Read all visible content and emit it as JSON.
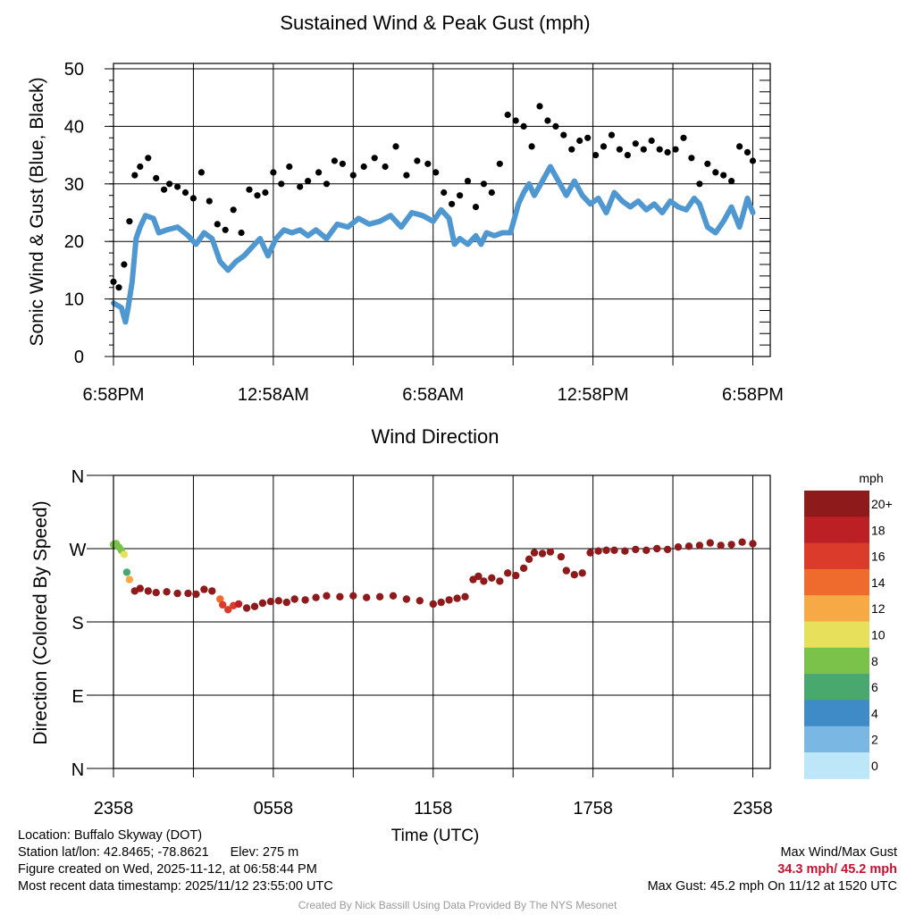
{
  "chart_data": [
    {
      "type": "line",
      "title": "Sustained Wind & Peak Gust (mph)",
      "ylabel": "Sonic Wind & Gust (Blue, Black)",
      "xlabel": "",
      "ylim": [
        0,
        50
      ],
      "yticks": [
        "0",
        "10",
        "20",
        "30",
        "40",
        "50"
      ],
      "xlim_hours": [
        0,
        24
      ],
      "xtick_labels": [
        "6:58PM",
        "12:58AM",
        "6:58AM",
        "12:58PM",
        "6:58PM"
      ],
      "grid": true,
      "series": [
        {
          "name": "Sonic Wind (Blue)",
          "color": "#4f97d0",
          "x_hours": [
            0,
            0.3,
            0.45,
            0.55,
            0.7,
            0.85,
            1.0,
            1.2,
            1.5,
            1.7,
            2.0,
            2.4,
            2.8,
            3.1,
            3.4,
            3.7,
            4.0,
            4.3,
            4.6,
            4.9,
            5.2,
            5.5,
            5.8,
            6.1,
            6.4,
            6.7,
            7.0,
            7.3,
            7.6,
            8.0,
            8.4,
            8.8,
            9.2,
            9.6,
            10.0,
            10.4,
            10.8,
            11.2,
            11.6,
            12.0,
            12.3,
            12.6,
            12.8,
            13.0,
            13.3,
            13.6,
            13.8,
            14.0,
            14.3,
            14.6,
            14.9,
            15.2,
            15.4,
            15.6,
            15.8,
            16.1,
            16.4,
            16.7,
            17.0,
            17.3,
            17.6,
            17.9,
            18.2,
            18.5,
            18.8,
            19.1,
            19.4,
            19.7,
            20.0,
            20.3,
            20.6,
            20.9,
            21.2,
            21.5,
            21.8,
            22.0,
            22.3,
            22.6,
            22.9,
            23.2,
            23.5,
            23.8,
            24.0
          ],
          "values": [
            9.3,
            8.5,
            6.0,
            8.5,
            13.0,
            20.5,
            22.5,
            24.5,
            24.0,
            21.5,
            22.0,
            22.5,
            21.0,
            19.5,
            21.5,
            20.5,
            16.5,
            15.0,
            16.5,
            17.5,
            19.0,
            20.5,
            17.5,
            20.5,
            22.0,
            21.5,
            22.0,
            21.0,
            22.0,
            20.5,
            23.0,
            22.5,
            24.0,
            23.0,
            23.5,
            24.5,
            22.5,
            25.0,
            24.5,
            23.5,
            25.5,
            24.0,
            19.5,
            20.5,
            19.5,
            21.0,
            19.5,
            21.5,
            21.0,
            21.5,
            21.5,
            26.5,
            28.5,
            30.0,
            28.0,
            30.5,
            33.0,
            30.5,
            28.0,
            30.5,
            28.0,
            26.5,
            27.5,
            25.0,
            28.5,
            27.0,
            26.0,
            27.0,
            25.5,
            26.5,
            25.0,
            27.0,
            26.0,
            25.5,
            27.5,
            26.5,
            22.5,
            21.5,
            23.5,
            26.0,
            22.5,
            27.5,
            25.0
          ]
        },
        {
          "name": "Peak Gust (Black)",
          "color": "#000000",
          "x_hours": [
            0,
            0.2,
            0.4,
            0.6,
            0.8,
            1.0,
            1.3,
            1.6,
            1.9,
            2.1,
            2.4,
            2.7,
            3.0,
            3.3,
            3.6,
            3.9,
            4.2,
            4.5,
            4.8,
            5.1,
            5.4,
            5.7,
            6.0,
            6.3,
            6.6,
            7.0,
            7.3,
            7.7,
            8.0,
            8.3,
            8.6,
            9.0,
            9.4,
            9.8,
            10.2,
            10.6,
            11.0,
            11.4,
            11.8,
            12.1,
            12.4,
            12.7,
            13.0,
            13.3,
            13.6,
            13.9,
            14.2,
            14.5,
            14.8,
            15.1,
            15.4,
            15.7,
            16.0,
            16.3,
            16.6,
            16.9,
            17.2,
            17.5,
            17.8,
            18.1,
            18.4,
            18.7,
            19.0,
            19.3,
            19.6,
            19.9,
            20.2,
            20.5,
            20.8,
            21.1,
            21.4,
            21.7,
            22.0,
            22.3,
            22.6,
            22.9,
            23.2,
            23.5,
            23.8,
            24.0
          ],
          "values": [
            13.0,
            12.0,
            16.0,
            23.5,
            31.5,
            33.0,
            34.5,
            31.0,
            29.0,
            30.0,
            29.5,
            28.5,
            27.5,
            32.0,
            27.0,
            23.0,
            22.0,
            25.5,
            21.5,
            29.0,
            28.0,
            28.5,
            32.0,
            30.0,
            33.0,
            29.5,
            30.5,
            32.0,
            30.0,
            34.0,
            33.5,
            31.5,
            33.0,
            34.5,
            33.0,
            36.5,
            31.5,
            34.0,
            33.5,
            32.0,
            28.5,
            26.5,
            28.0,
            30.5,
            26.0,
            30.0,
            28.5,
            33.5,
            42.0,
            41.0,
            40.0,
            36.5,
            43.5,
            41.0,
            40.0,
            38.5,
            36.0,
            37.5,
            38.0,
            35.0,
            36.5,
            38.5,
            36.0,
            35.0,
            37.0,
            36.0,
            37.5,
            36.0,
            35.5,
            36.0,
            38.0,
            34.5,
            30.0,
            33.5,
            32.0,
            31.5,
            30.5,
            36.5,
            35.5,
            34.0
          ]
        }
      ]
    },
    {
      "type": "scatter",
      "title": "Wind Direction",
      "ylabel": "Direction (Colored By Speed)",
      "xlabel": "Time (UTC)",
      "ylim": [
        0,
        360
      ],
      "ytick_values": [
        0,
        90,
        180,
        270,
        360
      ],
      "ytick_labels": [
        "N",
        "E",
        "S",
        "W",
        "N"
      ],
      "xlim_hours": [
        0,
        24
      ],
      "xtick_labels": [
        "2358",
        "0558",
        "1158",
        "1758",
        "2358"
      ],
      "grid": true,
      "series": [
        {
          "name": "Direction",
          "x_hours": [
            0,
            0.1,
            0.2,
            0.3,
            0.4,
            0.5,
            0.6,
            0.8,
            1.0,
            1.3,
            1.6,
            2.0,
            2.4,
            2.8,
            3.1,
            3.4,
            3.7,
            4.0,
            4.1,
            4.3,
            4.5,
            4.7,
            5.0,
            5.3,
            5.6,
            5.9,
            6.2,
            6.5,
            6.8,
            7.2,
            7.6,
            8.0,
            8.5,
            9.0,
            9.5,
            10.0,
            10.5,
            11.0,
            11.5,
            12.0,
            12.3,
            12.6,
            12.9,
            13.2,
            13.5,
            13.7,
            13.9,
            14.2,
            14.5,
            14.8,
            15.1,
            15.4,
            15.6,
            15.8,
            16.1,
            16.4,
            16.8,
            17.0,
            17.3,
            17.6,
            17.9,
            18.2,
            18.5,
            18.8,
            19.2,
            19.6,
            20.0,
            20.4,
            20.8,
            21.2,
            21.6,
            22.0,
            22.4,
            22.8,
            23.2,
            23.6,
            24.0
          ],
          "values": [
            275,
            276,
            272,
            268,
            263,
            241,
            232,
            218,
            221,
            218,
            216,
            217,
            215,
            215,
            214,
            220,
            218,
            208,
            201,
            195,
            200,
            202,
            197,
            199,
            203,
            205,
            206,
            204,
            208,
            207,
            210,
            212,
            211,
            212,
            210,
            211,
            212,
            208,
            206,
            202,
            204,
            207,
            209,
            211,
            232,
            236,
            230,
            234,
            230,
            240,
            237,
            246,
            257,
            265,
            264,
            266,
            260,
            243,
            238,
            240,
            265,
            267,
            268,
            268,
            267,
            269,
            268,
            270,
            269,
            272,
            273,
            274,
            277,
            274,
            275,
            278,
            276
          ],
          "speeds": [
            9,
            9,
            8,
            8,
            10,
            6,
            12,
            20,
            20,
            20,
            20,
            20,
            20,
            20,
            20,
            20,
            20,
            14,
            16,
            16,
            17,
            18,
            20,
            20,
            20,
            20,
            20,
            20,
            20,
            20,
            20,
            20,
            20,
            20,
            20,
            20,
            20,
            20,
            20,
            20,
            20,
            20,
            20,
            20,
            20,
            20,
            20,
            20,
            20,
            20,
            20,
            20,
            20,
            20,
            20,
            20,
            20,
            20,
            20,
            20,
            20,
            20,
            20,
            20,
            20,
            20,
            20,
            20,
            20,
            20,
            20,
            20,
            20,
            20,
            20,
            20,
            20
          ]
        }
      ],
      "colorbar": {
        "title": "mph",
        "labels": [
          "20+",
          "18",
          "16",
          "14",
          "12",
          "10",
          "8",
          "6",
          "4",
          "2",
          "0"
        ],
        "colors": [
          "#8e1a1b",
          "#bc1f24",
          "#da3b2a",
          "#ee6a2d",
          "#f6a944",
          "#e7e05a",
          "#7bc24b",
          "#49a86e",
          "#3f8bc8",
          "#7ab8e3",
          "#bde6f8"
        ]
      }
    }
  ],
  "info": {
    "location": "Location: Buffalo Skyway (DOT)",
    "latlon": "Station lat/lon: 42.8465; -78.8621",
    "elev": "Elev: 275 m",
    "created": "Figure created on Wed, 2025-11-12, at 06:58:44 PM",
    "recent": "Most recent data timestamp: 2025/11/12 23:55:00 UTC",
    "max_title": "Max Wind/Max Gust",
    "max_values": "34.3 mph/ 45.2 mph",
    "max_gust": "Max Gust: 45.2 mph On 11/12 at 1520 UTC",
    "credit": "Created By Nick Bassill Using Data Provided By The NYS Mesonet"
  }
}
